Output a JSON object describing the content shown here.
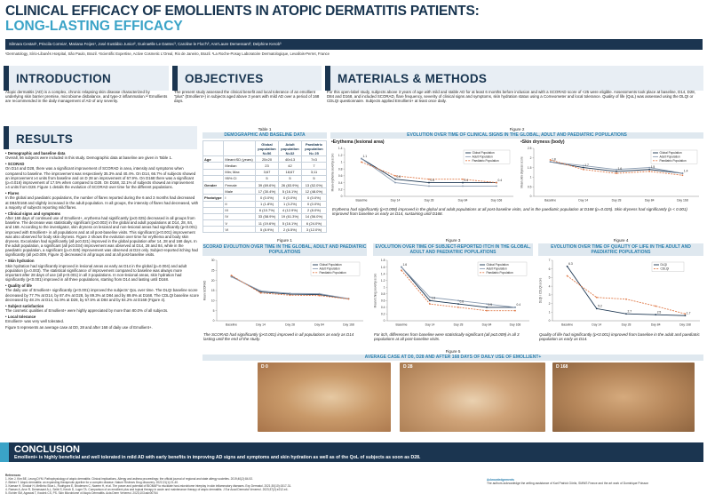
{
  "header": {
    "title_line1": "CLINICAL EFFICACY OF EMOLLIENTS IN ATOPIC DERMATITIS PATIENTS:",
    "title_line2": "LONG-LASTING EFFICACY",
    "authors": "Silmara Cestari¹, Priscila Correia¹, Mariana Feijes¹, José Eustábio Junior², Guénaëlle Le Dantec³, Caroline le Floc'h³, Ann'Laure Demessant³, Delphine Kerob³",
    "affiliations": "¹Dermatology, Sírio-Libanês Hospital, São Paulo, Brazil. ²Scientific Expertise, Active Cosmetic L'Oreal, Rio de Janeiro, Brazil. ³La Roche-Posay Laboratoire Dermatologique, Levallois-Perret, France"
  },
  "intro": {
    "title": "INTRODUCTION",
    "text": "Atopic dermatitis (AD) is a complex, chronic relapsing skin disease characterized by underlying skin barrier premise, microbiome disbalance, and type-2 inflammation.¹² Emollients are recommended in the daily management of AD of any severity."
  },
  "objectives": {
    "title": "OBJECTIVES",
    "text": "The present study assessed the clinical benefit and local tolerance of an emollient \"plus\" (Emollient+) in subjects aged above 3 years with mild AD over a period of 168 days."
  },
  "methods": {
    "title": "MATERIALS & METHODS",
    "text": "For this open-label study, subjects above 3 years of age with mild and stable AD for at least 6 months before inclusion and with a SCORAD score of <25 were eligible. Assessments took place at baseline, D14, D28, D84 and D168, and included SCORAD, flare frequency, severity of clinical signs and symptoms, skin hydration status using a Corneometer and local tolerance. Quality of life (QoL) was assessed using the DLQI or CDLQI questionnaire. Subjects applied Emollient+ at least once daily."
  },
  "results": {
    "title": "RESULTS",
    "p1_head": "Demographic and baseline data",
    "p1": "Overall, 56 subjects were included in this study. Demographic data at baseline are given in Table 1.",
    "p2_head": "SCORAD",
    "p2": "On D14 and D28, there was a significant improvement of SCORAD in area, intensity and symptoms when compared to baseline. The improvement was respectively 35.3% and 40.4%. On D14, 66.7% of subjects showed an improvement ≥4 units from baseline and on D 28 an improvement of 67.9%. On D168 there was a significant (p=0.016) improvement of 17.5% when compared to D28. On D168, 32.1% of subjects showed an improvement ≥4 units from D28. Figure 1 details the evolution of SCORAD over time for the different populations.",
    "p3_head": "Flares",
    "p3": "In the global and paediatric populations, the number of flares reported during the 6 and 3 months had decreased at D84/D168 and slightly increased in the adult population. In all groups, the intensity of flares had decreased, with a majority of subjects reporting mild flares.",
    "p4_head": "Clinical signs and symptoms",
    "p4": "After 168 days of continued use of Emollient+, erythema had significantly (p≤0.025) decreased in all groups from baseline. The decrease was statistically significant (p≤0.002) in the global and adult populations at D14, 28, 84, and 168. According to the investigator, skin dryness on lesional and non-lesional areas had significantly (p<0.001) improved with Emollient+ in all populations and at all post-baseline visits. This significant (p<0.001) improvement was also observed for body skin dryness. Figure 2 shows the evolution over time for erythema and body skin dryness. Excoriation had significantly (all p≤0.021) improved in the global population after 14, 28 and 168 days. In the adult population, a significant (all p≤0.034) improvement was observed at D14, 28 and 84, while in the paediatric population, a significant (p=0.025) improvement was observed at D24 only. Subject-reported itching had significantly (all p≤0.009, Figure 3) decreased in all groups and at all post-baseline visits.",
    "p5_head": "Skin hydration",
    "p5": "Skin hydration had significantly improved in lesional areas as early as D14 in the global (p=0.004) and adult population (p=0.003). The statistical significance of improvement compared to baseline was always more important after 28 days of use (all p<0.001) in all 3 populations. In non-lesional areas, skin hydration had significantly (p<0.001) improved in all three populations, starting from D14 and lasting until D168.",
    "p6_head": "Quality of life",
    "p6": "The daily use of Emollient+ significantly (p<0.001) improved the subjects' QoL over time. The DLQI baseline score decreased by 77.7% at D14, by 87.4% at D28, by 89.3% at D84 and by 89.8% at D168. The CDLQI baseline score decreased by 48.1% at D14, 51.9% at D28, by 67.5% at D84 and by 84.2% at D168 (Figure 4).",
    "p7_head": "Subject satisfaction",
    "p7": "The cosmetic qualities of Emollient+ were highly appreciated by more than 80.0% of all subjects.",
    "p8_head": "Local tolerance",
    "p8": "Emollient+ was very well tolerated.",
    "p9": "Figure 5 represents an average case at D0, 28 and after 168 of daily use of Emollient+."
  },
  "table1": {
    "label": "Table 1",
    "band": "DEMOGRAPHIC AND BASELINE DATA",
    "headers": [
      "",
      "",
      "Global population N=56",
      "Adult population N=32",
      "Paediatric population N= 25"
    ],
    "rows": [
      [
        "Age",
        "Mean±SD (years)",
        "25±20",
        "40±13",
        "7±3"
      ],
      [
        "",
        "Median",
        "23",
        "42",
        "7"
      ],
      [
        "",
        "Min; Max",
        "3;67",
        "18;67",
        "3;11"
      ],
      [
        "",
        "95% CI",
        "5",
        "5",
        "5"
      ],
      [
        "Gender",
        "Female",
        "39 (69.6%)",
        "26 (83.9%)",
        "13 (52.0%)"
      ],
      [
        "",
        "Male",
        "17 (30.4%)",
        "5 (16.1%)",
        "12 (48.0%)"
      ],
      [
        "Phototype",
        "I",
        "0 (0.0%)",
        "0 (0.0%)",
        "0 (0.0%)"
      ],
      [
        "",
        "II",
        "1 (1.8%)",
        "1 (3.2%)",
        "0 (0.0%)"
      ],
      [
        "",
        "III",
        "6 (10.7%)",
        "4 (12.9%)",
        "2 (8.0%)"
      ],
      [
        "",
        "IV",
        "33 (58.9%)",
        "19 (61.3%)",
        "14 (56.0%)"
      ],
      [
        "",
        "V",
        "11 (19.6%)",
        "5 (16.1%)",
        "6 (24.0%)"
      ],
      [
        "",
        "VI",
        "5 (8.9%)",
        "2 (6.5%)",
        "3 (12.0%)"
      ]
    ]
  },
  "figure2": {
    "label": "Figure 2",
    "band": "EVOLUTION OVER TIME OF CLINICAL SIGNS IN THE GLOBAL, ADULT AND PAEDIATRIC POPULATIONS",
    "left_title": "Erythema (lesional area)",
    "right_title": "Skin dryness (body)",
    "caption": "Erythema had significantly (p<0.008) improved in the global and adult populations at all post-baseline visits, and in the paediatric population at D168 (p=0.025). Skin dryness had significantly (p < 0.001) improved from baseline as early as D14, sustaining until D168."
  },
  "figure1": {
    "label": "Figure 1",
    "band": "SCORAD EVOLUTION OVER TIME IN THE GLOBAL, ADULT AND PAEDIATRIC POPULATIONS",
    "caption": "The SCORAD had significantly (p<0.001) improved in all populations as early as D14 lasting until the end of the study."
  },
  "figure3": {
    "label": "Figure 3",
    "band": "EVOLUTION OVER TIME OF SUBJECT-REPORTED ITCH IN THE GLOBAL, ADULT AND PAEDIATRIC POPULATIONS",
    "caption": "For itch, differences from baseline were statistically significant (all p≤0.009) in all 3 populations at all post-baseline visits."
  },
  "figure4": {
    "label": "Figure 4",
    "band": "EVOLUTION OVER TIME OF QUALITY OF LIFE IN THE ADULT AND PAEDIATRIC POPULATIONS",
    "caption": "Quality of life had significantly (p<0.001) improved from baseline in the adult and paediatric population as early as D14."
  },
  "figure5": {
    "label": "Figure 5",
    "band": "AVERAGE CASE AT D0, D28 AND AFTER 168 DAYS OF DAILY USE OF EMOLLIENT+",
    "photos": [
      "D 0",
      "D 28",
      "D 168"
    ]
  },
  "conclusion": {
    "title": "CONCLUSION",
    "text": "Emollient+ is highly beneficial and well tolerated in mild AD with early benefits in improving AD signs and symptoms and skin hydration as well as of the QoL of subjects as soon as D28."
  },
  "references": {
    "title": "References",
    "items": [
      "1. Kim J, Kim BE, Leung DYM. Pathophysiology of atopic dermatitis: Clinical implications. Allergy and asthma proceedings: the official journal of regional and state allergy societies. 2019;40(2):84-92.",
      "2. Bieber T. Atopic dermatitis: an expanding therapeutic pipeline for a complex disease. Nature Reviews Drug discovery. 2022;21(1):21-40.",
      "3. Kaesse H, Sinclair H, Mellinho Silva L, Rodriguez E, Brodersen C, Naeem H, et al. The power and potential of BIOMAP to elucidate host-microbiome interplay in skin inflammatory diseases. Exp Dermatol. 2021;30(10):1517-31.",
      "4. Raman A, Arve R, Demessant A-L, Seité S, Kerob D, Luger TA. Comparison of an emollient plus and topical therapy in acute and maintenance therapy of atopic dermatitis. J Eur Acad Dermatol Venereol. 2023;37(2):e212-e4.",
      "5. Eichler SM, Agrawal T, Kwolek CS, PS. Skin Microbiome of Atopic Dermatitis. Acta Derm Venereol. 2023;103:adv00764"
    ]
  },
  "acknowledgements": {
    "title": "Acknowledgements",
    "text": "The authors acknowledge the writing assistance of Karl Patrick Göritz, SMWS France and the art work of Dominique Poisson"
  },
  "colors": {
    "navy": "#1b3550",
    "teal": "#3aa3c7",
    "global": "#1b3550",
    "adult": "#8a9bb0",
    "paed": "#e07b4a"
  },
  "chart_data": [
    {
      "id": "figure1",
      "type": "line",
      "title": "SCORAD evolution over time",
      "xlabel": "",
      "ylabel": "Mean SCORAD",
      "categories": [
        "Baseline",
        "Day 14",
        "Day 28",
        "Day 84",
        "Day 168"
      ],
      "ylim": [
        0,
        30
      ],
      "yticks": [
        0,
        5,
        10,
        15,
        20,
        25,
        30
      ],
      "series": [
        {
          "name": "Global Population",
          "values": [
            22.1,
            14.3,
            13.2,
            13.0,
            10.9
          ]
        },
        {
          "name": "Adult Population",
          "values": [
            21.8,
            14.8,
            13.6,
            13.4,
            11.0
          ]
        },
        {
          "name": "Paediatric Population",
          "values": [
            22.5,
            13.8,
            12.7,
            12.5,
            10.8
          ]
        }
      ]
    },
    {
      "id": "figure2a",
      "type": "line",
      "title": "Erythema (lesional area)",
      "xlabel": "",
      "ylabel": "Mean erythema severity score",
      "categories": [
        "Baseline",
        "Day 14",
        "Day 28",
        "Day 84",
        "Day 168"
      ],
      "ylim": [
        0,
        1.4
      ],
      "yticks": [
        0,
        0.2,
        0.4,
        0.6,
        0.8,
        1,
        1.2,
        1.4
      ],
      "series": [
        {
          "name": "Global Population",
          "values": [
            1.1,
            0.5,
            0.4,
            0.4,
            0.4
          ]
        },
        {
          "name": "Adult Population",
          "values": [
            1.1,
            0.4,
            0.3,
            0.3,
            0.3
          ]
        },
        {
          "name": "Paediatric Population",
          "values": [
            1.0,
            0.6,
            0.5,
            0.5,
            0.4
          ]
        }
      ],
      "data_labels": [
        "1.1",
        "0.6",
        "0.5",
        "0.4",
        "0.4",
        "0.3",
        "0.1"
      ]
    },
    {
      "id": "figure2b",
      "type": "line",
      "title": "Skin dryness (body)",
      "xlabel": "",
      "ylabel": "Mean skin dryness score",
      "categories": [
        "Baseline",
        "Day 14",
        "Day 28",
        "Day 84",
        "Day 168"
      ],
      "ylim": [
        0,
        2.5
      ],
      "yticks": [
        0,
        0.5,
        1,
        1.5,
        2,
        2.5
      ],
      "series": [
        {
          "name": "Global Population",
          "values": [
            1.8,
            1.5,
            1.3,
            1.4,
            1.2
          ]
        },
        {
          "name": "Adult Population",
          "values": [
            1.8,
            1.6,
            1.4,
            1.5,
            1.2
          ]
        },
        {
          "name": "Paediatric Population",
          "values": [
            1.9,
            1.4,
            1.2,
            1.3,
            1.1
          ]
        }
      ],
      "data_labels": [
        "1.8",
        "1.7",
        "1.6",
        "1.5",
        "1.4",
        "1.3",
        "1.2",
        "1.1"
      ]
    },
    {
      "id": "figure3",
      "type": "line",
      "title": "Subject-reported itch",
      "xlabel": "",
      "ylabel": "Mean itching severity score",
      "categories": [
        "Baseline",
        "Day 14",
        "Day 28",
        "Day 84",
        "Day 168"
      ],
      "ylim": [
        0,
        1.8
      ],
      "yticks": [
        0,
        0.2,
        0.4,
        0.6,
        0.8,
        1,
        1.2,
        1.4,
        1.6,
        1.8
      ],
      "series": [
        {
          "name": "Global Population",
          "values": [
            1.6,
            0.6,
            0.5,
            0.4,
            0.4
          ]
        },
        {
          "name": "Adult Population",
          "values": [
            1.6,
            0.7,
            0.6,
            0.5,
            0.4
          ]
        },
        {
          "name": "Paediatric Population",
          "values": [
            1.5,
            0.5,
            0.4,
            0.3,
            0.3
          ]
        }
      ],
      "data_labels": [
        "1.6",
        "1.6",
        "0.6",
        "0.5",
        "0.4",
        "0.4",
        "0.3"
      ]
    },
    {
      "id": "figure4",
      "type": "line",
      "title": "Quality of life",
      "xlabel": "",
      "ylabel": "DLQI / CDLQI score",
      "categories": [
        "Baseline",
        "Day 14",
        "Day 28",
        "Day 84",
        "Day 168"
      ],
      "ylim": [
        0,
        7
      ],
      "yticks": [
        0,
        1,
        2,
        3,
        4,
        5,
        6,
        7
      ],
      "series": [
        {
          "name": "DLQI",
          "values": [
            6.3,
            1.4,
            0.8,
            0.7,
            0.6
          ]
        },
        {
          "name": "CDLQI",
          "values": [
            5.2,
            2.7,
            2.5,
            1.7,
            0.8
          ]
        }
      ],
      "data_labels": [
        "6.3",
        "5.2",
        "2.7",
        "2.5",
        "1.7",
        "1.4",
        "0.8",
        "0.7",
        "0.6"
      ]
    }
  ]
}
